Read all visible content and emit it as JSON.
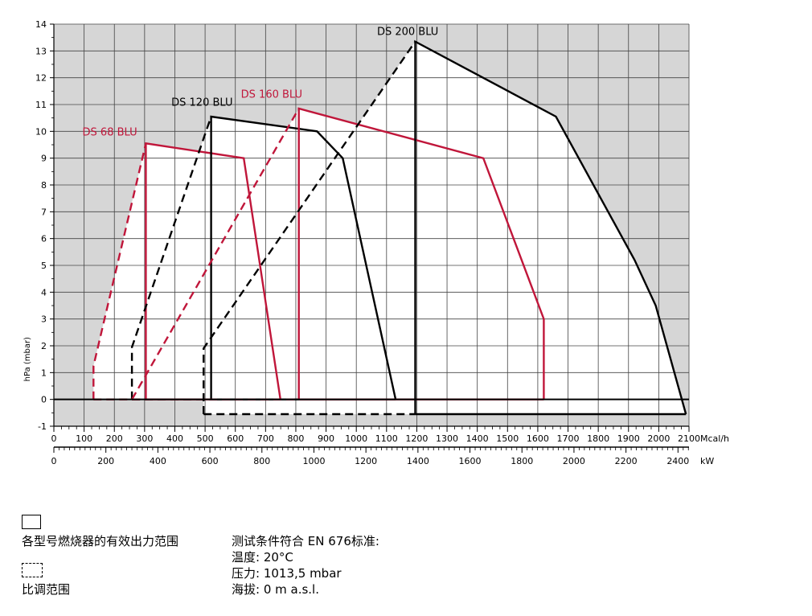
{
  "chart_data": {
    "type": "area",
    "xlabel": "Mcal/h",
    "x2label": "kW",
    "ylabel": "hPa (mbar)",
    "xlim": [
      0,
      2100
    ],
    "ylim": [
      -1,
      14
    ],
    "x_ticks": [
      0,
      100,
      200,
      300,
      400,
      500,
      600,
      700,
      800,
      900,
      1000,
      1100,
      1200,
      1300,
      1400,
      1500,
      1600,
      1700,
      1800,
      1900,
      2000,
      2100
    ],
    "y_ticks": [
      -1,
      0,
      1,
      2,
      3,
      4,
      5,
      6,
      7,
      8,
      9,
      10,
      11,
      12,
      13,
      14
    ],
    "kw_ticks": [
      0,
      200,
      400,
      600,
      800,
      1000,
      1200,
      1400,
      1600,
      1800,
      2000,
      2200,
      2400
    ],
    "grid": true,
    "series": [
      {
        "name": "DS 68 BLU",
        "color": "#c0163a",
        "label_at": [
          185,
          9.85
        ],
        "working_range": [
          [
            304,
            0
          ],
          [
            304,
            9.55
          ],
          [
            628,
            9.0
          ],
          [
            749,
            0
          ]
        ],
        "modulation_range": [
          [
            131,
            0
          ],
          [
            131,
            1.25
          ],
          [
            304,
            9.55
          ]
        ]
      },
      {
        "name": "DS 120 BLU",
        "color": "#000000",
        "label_at": [
          490,
          10.95
        ],
        "working_range": [
          [
            520,
            0
          ],
          [
            520,
            10.55
          ],
          [
            870,
            10.0
          ],
          [
            955,
            9.0
          ],
          [
            1130,
            0
          ]
        ],
        "modulation_range": [
          [
            258,
            0
          ],
          [
            258,
            1.95
          ],
          [
            520,
            10.55
          ]
        ]
      },
      {
        "name": "DS 160 BLU",
        "color": "#c0163a",
        "label_at": [
          720,
          11.25
        ],
        "working_range": [
          [
            810,
            0
          ],
          [
            810,
            10.85
          ],
          [
            1420,
            9.0
          ],
          [
            1620,
            3.0
          ],
          [
            1620,
            0
          ]
        ],
        "modulation_range": [
          [
            258,
            0
          ],
          [
            810,
            10.85
          ]
        ]
      },
      {
        "name": "DS 200 BLU",
        "color": "#000000",
        "label_at": [
          1170,
          13.6
        ],
        "working_range": [
          [
            1195,
            -0.55
          ],
          [
            1195,
            13.35
          ],
          [
            1660,
            10.55
          ],
          [
            1920,
            5.2
          ],
          [
            1990,
            3.5
          ],
          [
            2090,
            -0.55
          ]
        ],
        "modulation_range": [
          [
            495,
            -0.55
          ],
          [
            495,
            1.9
          ],
          [
            1195,
            13.35
          ]
        ]
      }
    ]
  },
  "legend": {
    "working_label": "各型号燃烧器的有效出力范围",
    "modulation_label": "比调范围"
  },
  "conditions": {
    "title": "测试条件符合 EN 676标准:",
    "temperature": "温度: 20°C",
    "pressure": "压力: 1013,5 mbar",
    "altitude": "海拔: 0 m a.s.l."
  }
}
